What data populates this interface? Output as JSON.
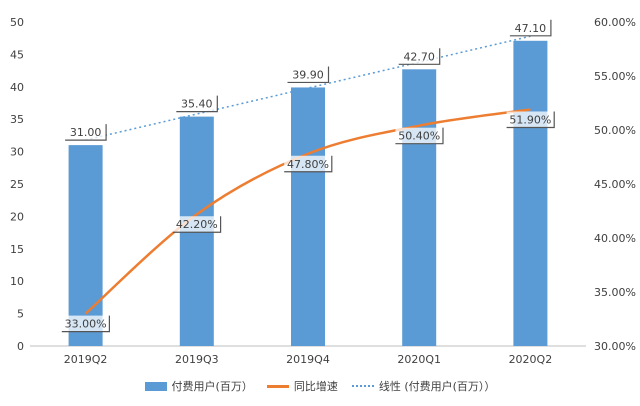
{
  "chart_data": {
    "type": "bar",
    "categories": [
      "2019Q2",
      "2019Q3",
      "2019Q4",
      "2020Q1",
      "2020Q2"
    ],
    "series": [
      {
        "name": "付费用户(百万）",
        "kind": "bar",
        "axis": "left",
        "values": [
          31.0,
          35.4,
          39.9,
          42.7,
          47.1
        ],
        "labels": [
          "31.00",
          "35.40",
          "39.90",
          "42.70",
          "47.10"
        ],
        "color": "#5b9bd5"
      },
      {
        "name": "同比增速",
        "kind": "line",
        "axis": "right",
        "values": [
          33.0,
          42.2,
          47.8,
          50.4,
          51.9
        ],
        "labels": [
          "33.00%",
          "42.20%",
          "47.80%",
          "50.40%",
          "51.90%"
        ],
        "color": "#ed7d31"
      },
      {
        "name": "线性 (付费用户(百万））",
        "kind": "trendline",
        "axis": "left",
        "values": [
          31.8,
          35.8,
          39.8,
          43.8,
          47.8
        ],
        "color": "#5b9bd5"
      }
    ],
    "left_axis": {
      "min": 0,
      "max": 50,
      "ticks": [
        "0",
        "5",
        "10",
        "15",
        "20",
        "25",
        "30",
        "35",
        "40",
        "45",
        "50"
      ]
    },
    "right_axis": {
      "min": 30,
      "max": 60,
      "ticks": [
        "30.00%",
        "35.00%",
        "40.00%",
        "45.00%",
        "50.00%",
        "55.00%",
        "60.00%"
      ]
    },
    "grid": false,
    "legend_position": "bottom"
  }
}
